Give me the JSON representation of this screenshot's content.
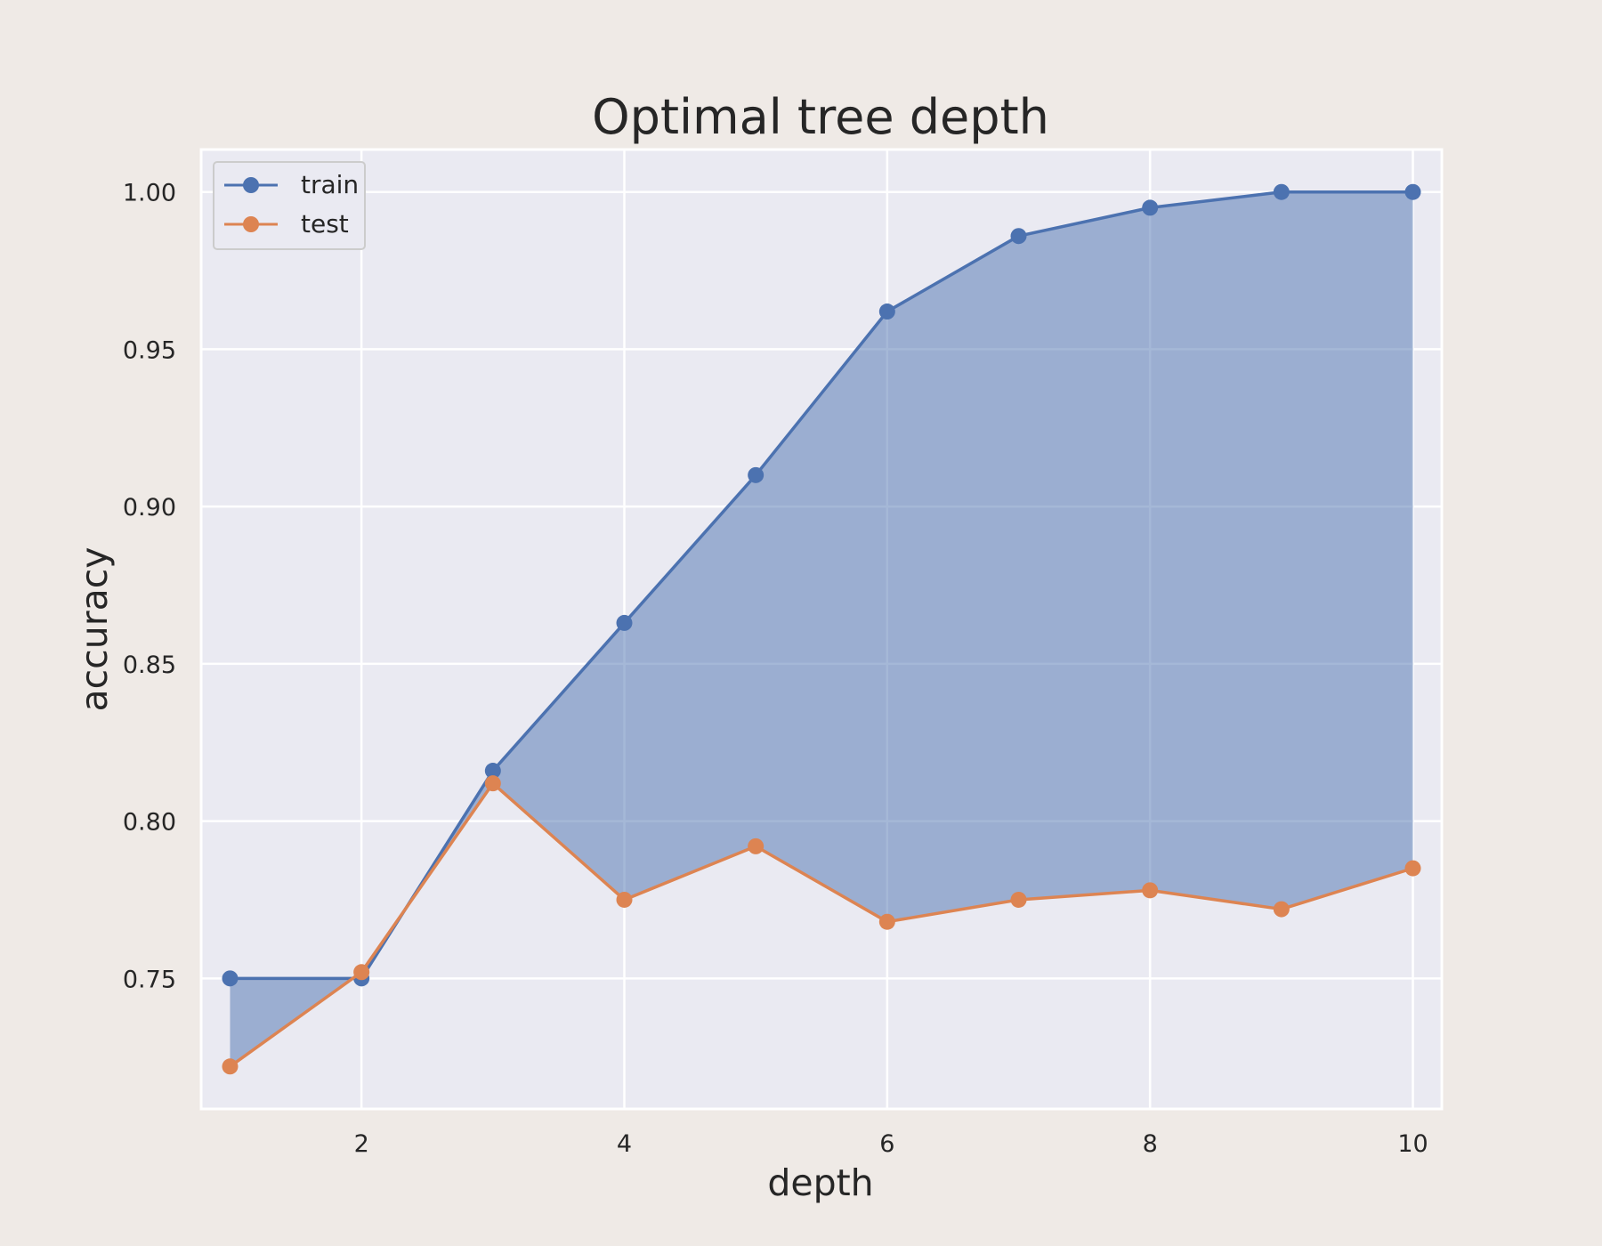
{
  "chart_data": {
    "type": "line",
    "title": "Optimal tree depth",
    "xlabel": "depth",
    "ylabel": "accuracy",
    "x": [
      1,
      2,
      3,
      4,
      5,
      6,
      7,
      8,
      9,
      10
    ],
    "xlim": [
      0.78,
      10.22
    ],
    "ylim": [
      0.7085,
      1.0135
    ],
    "xticks": [
      2,
      4,
      6,
      8,
      10
    ],
    "xtick_labels": [
      "2",
      "4",
      "6",
      "8",
      "10"
    ],
    "yticks": [
      0.75,
      0.8,
      0.85,
      0.9,
      0.95,
      1.0
    ],
    "ytick_labels": [
      "0.75",
      "0.80",
      "0.85",
      "0.90",
      "0.95",
      "1.00"
    ],
    "grid": true,
    "legend_position": "top-left",
    "fill_between_series": true,
    "series": [
      {
        "name": "train",
        "color": "#4c72b0",
        "values": [
          0.75,
          0.75,
          0.816,
          0.863,
          0.91,
          0.962,
          0.986,
          0.995,
          1.0,
          1.0
        ]
      },
      {
        "name": "test",
        "color": "#dd8452",
        "values": [
          0.722,
          0.752,
          0.812,
          0.775,
          0.792,
          0.768,
          0.775,
          0.778,
          0.772,
          0.785
        ]
      }
    ],
    "colors": {
      "figure_bg": "#efeae6",
      "axes_bg": "#eaeaf2",
      "grid": "#ffffff",
      "fill": "#4c72b0"
    }
  }
}
